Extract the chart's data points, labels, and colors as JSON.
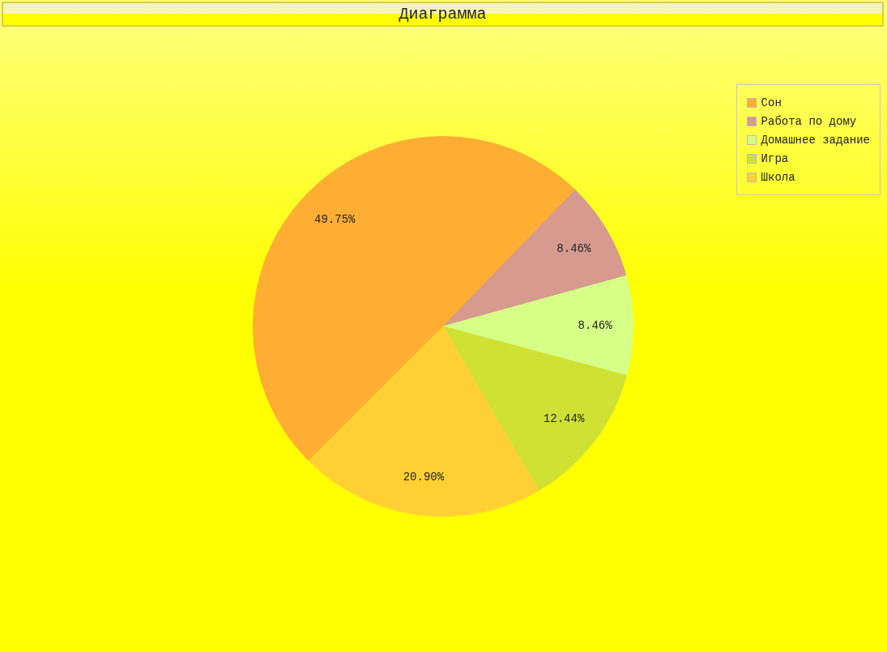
{
  "chart_data": {
    "type": "pie",
    "title": "Диаграмма",
    "categories": [
      "Сон",
      "Работа по дому",
      "Домашнее задание",
      "Игра",
      "Школа"
    ],
    "values": [
      49.75,
      8.46,
      8.46,
      12.44,
      20.9
    ],
    "colors": [
      "#ffad33",
      "#d69a8e",
      "#d6ff88",
      "#cfe233",
      "#ffd033"
    ],
    "value_labels": [
      "49.75%",
      "8.46%",
      "8.46%",
      "12.44%",
      "20.90%"
    ],
    "legend": "top right"
  }
}
